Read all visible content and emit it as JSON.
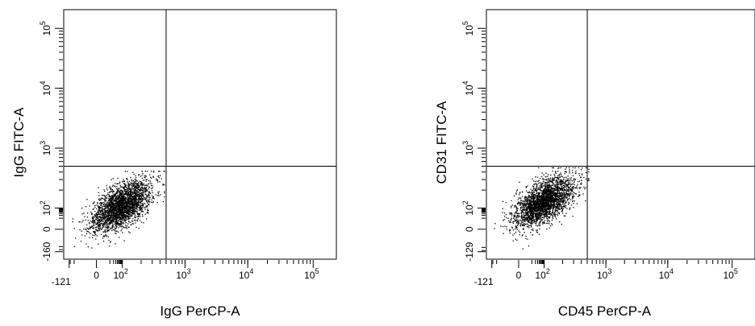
{
  "chart_data": [
    {
      "type": "scatter",
      "title": "",
      "xlabel": "IgG PerCP-A",
      "ylabel": "IgG FITC-A",
      "x_scale": "biexponential",
      "y_scale": "biexponential",
      "x_ticks": [
        {
          "value": -121,
          "label": "-121"
        },
        {
          "value": 0,
          "label": "0"
        },
        {
          "value": 100,
          "label": "10",
          "exp": "2"
        },
        {
          "value": 1000,
          "label": "10",
          "exp": "3"
        },
        {
          "value": 10000,
          "label": "10",
          "exp": "4"
        },
        {
          "value": 100000,
          "label": "10",
          "exp": "5"
        }
      ],
      "y_ticks": [
        {
          "value": -160,
          "label": "-160"
        },
        {
          "value": 0,
          "label": "0"
        },
        {
          "value": 100,
          "label": "10",
          "exp": "2"
        },
        {
          "value": 1000,
          "label": "10",
          "exp": "3"
        },
        {
          "value": 10000,
          "label": "10",
          "exp": "4"
        },
        {
          "value": 100000,
          "label": "10",
          "exp": "5"
        }
      ],
      "quadrant_gate": {
        "x": 500,
        "y": 500
      },
      "population": {
        "center_x": 80,
        "center_y": 110,
        "n_events": 2600,
        "x_range": [
          -70,
          460
        ],
        "y_range": [
          -60,
          420
        ]
      },
      "grid": false,
      "legend": "none"
    },
    {
      "type": "scatter",
      "title": "",
      "xlabel": "CD45 PerCP-A",
      "ylabel": "CD31 FITC-A",
      "x_scale": "biexponential",
      "y_scale": "biexponential",
      "x_ticks": [
        {
          "value": -121,
          "label": "-121"
        },
        {
          "value": 0,
          "label": "0"
        },
        {
          "value": 100,
          "label": "10",
          "exp": "2"
        },
        {
          "value": 1000,
          "label": "10",
          "exp": "3"
        },
        {
          "value": 10000,
          "label": "10",
          "exp": "4"
        },
        {
          "value": 100000,
          "label": "10",
          "exp": "5"
        }
      ],
      "y_ticks": [
        {
          "value": -129,
          "label": "-129"
        },
        {
          "value": 0,
          "label": "0"
        },
        {
          "value": 100,
          "label": "10",
          "exp": "2"
        },
        {
          "value": 1000,
          "label": "10",
          "exp": "3"
        },
        {
          "value": 10000,
          "label": "10",
          "exp": "4"
        },
        {
          "value": 100000,
          "label": "10",
          "exp": "5"
        }
      ],
      "quadrant_gate": {
        "x": 500,
        "y": 500
      },
      "population": {
        "center_x": 90,
        "center_y": 130,
        "n_events": 2600,
        "x_range": [
          -80,
          520
        ],
        "y_range": [
          -60,
          480
        ]
      },
      "grid": false,
      "legend": "none"
    }
  ],
  "colors": {
    "dots": "#000000",
    "axes": "#000000",
    "background": "#ffffff"
  }
}
